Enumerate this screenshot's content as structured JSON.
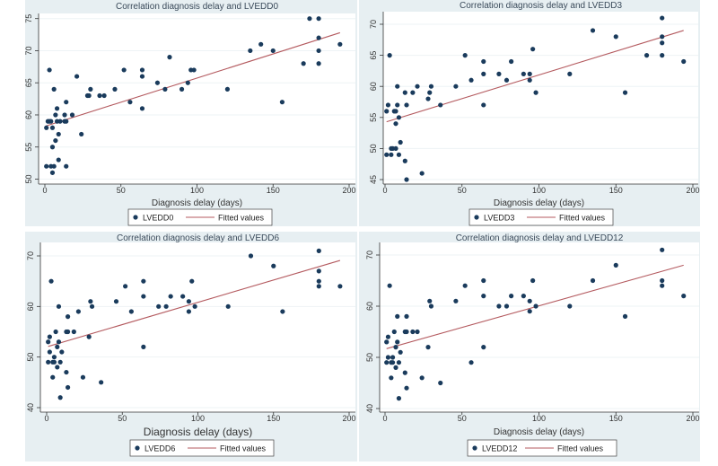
{
  "colors": {
    "marker": "#1a3b5c",
    "fit_line": "#b45a5f",
    "panel_bg": "#e7eff2",
    "plot_bg": "#ffffff",
    "grid": "#eef3f5"
  },
  "chart_data": [
    {
      "type": "scatter",
      "title": "Correlation diagnosis delay and LVEDD0",
      "xlabel": "Diagnosis delay (days)",
      "ylabel": "",
      "xlim": [
        0,
        200
      ],
      "ylim": [
        50,
        75
      ],
      "xticks": [
        0,
        50,
        100,
        150,
        200
      ],
      "yticks": [
        50,
        55,
        60,
        65,
        70,
        75
      ],
      "grid": true,
      "legend": {
        "placement": "bottom",
        "entries": [
          "LVEDD0",
          "Fitted values"
        ]
      },
      "series": [
        {
          "name": "LVEDD0",
          "points": [
            [
              1,
              58
            ],
            [
              1,
              52
            ],
            [
              2,
              59
            ],
            [
              3,
              67
            ],
            [
              3,
              59
            ],
            [
              4,
              59
            ],
            [
              4,
              52
            ],
            [
              5,
              58
            ],
            [
              5,
              55
            ],
            [
              5,
              51
            ],
            [
              6,
              64
            ],
            [
              6,
              52
            ],
            [
              7,
              60
            ],
            [
              7,
              56
            ],
            [
              8,
              61
            ],
            [
              8,
              59
            ],
            [
              9,
              57
            ],
            [
              9,
              53
            ],
            [
              10,
              59
            ],
            [
              13,
              60
            ],
            [
              13,
              59
            ],
            [
              14,
              62
            ],
            [
              14,
              59
            ],
            [
              14,
              52
            ],
            [
              18,
              60
            ],
            [
              21,
              66
            ],
            [
              24,
              57
            ],
            [
              28,
              63
            ],
            [
              29,
              63
            ],
            [
              30,
              64
            ],
            [
              36,
              63
            ],
            [
              39,
              63
            ],
            [
              46,
              64
            ],
            [
              52,
              67
            ],
            [
              56,
              62
            ],
            [
              64,
              67
            ],
            [
              64,
              66
            ],
            [
              64,
              61
            ],
            [
              74,
              65
            ],
            [
              79,
              64
            ],
            [
              82,
              69
            ],
            [
              90,
              64
            ],
            [
              94,
              65
            ],
            [
              96,
              67
            ],
            [
              98,
              67
            ],
            [
              120,
              64
            ],
            [
              135,
              70
            ],
            [
              142,
              71
            ],
            [
              150,
              70
            ],
            [
              156,
              62
            ],
            [
              170,
              68
            ],
            [
              174,
              75
            ],
            [
              180,
              75
            ],
            [
              180,
              72
            ],
            [
              180,
              70
            ],
            [
              180,
              68
            ],
            [
              194,
              71
            ]
          ]
        },
        {
          "name": "Fitted values",
          "line": [
            [
              1,
              58.3
            ],
            [
              194,
              72.8
            ]
          ]
        }
      ]
    },
    {
      "type": "scatter",
      "title": "Correlation diagnosis delay and LVEDD3",
      "xlabel": "Diagnosis delay (days)",
      "ylabel": "",
      "xlim": [
        0,
        200
      ],
      "ylim": [
        45,
        70
      ],
      "xticks": [
        0,
        50,
        100,
        150,
        200
      ],
      "yticks": [
        45,
        50,
        55,
        60,
        65,
        70
      ],
      "grid": true,
      "legend": {
        "placement": "bottom",
        "entries": [
          "LVEDD3",
          "Fitted values"
        ]
      },
      "series": [
        {
          "name": "LVEDD3",
          "points": [
            [
              1,
              56
            ],
            [
              1,
              49
            ],
            [
              2,
              57
            ],
            [
              3,
              65
            ],
            [
              4,
              50
            ],
            [
              4,
              49
            ],
            [
              5,
              50
            ],
            [
              6,
              56
            ],
            [
              7,
              56
            ],
            [
              7,
              54
            ],
            [
              7,
              50
            ],
            [
              8,
              60
            ],
            [
              8,
              57
            ],
            [
              9,
              55
            ],
            [
              9,
              49
            ],
            [
              10,
              51
            ],
            [
              13,
              59
            ],
            [
              13,
              48
            ],
            [
              14,
              57
            ],
            [
              14,
              45
            ],
            [
              18,
              59
            ],
            [
              21,
              60
            ],
            [
              24,
              46
            ],
            [
              28,
              58
            ],
            [
              29,
              59
            ],
            [
              30,
              60
            ],
            [
              36,
              57
            ],
            [
              46,
              60
            ],
            [
              52,
              65
            ],
            [
              56,
              61
            ],
            [
              64,
              64
            ],
            [
              64,
              62
            ],
            [
              64,
              57
            ],
            [
              74,
              62
            ],
            [
              79,
              61
            ],
            [
              82,
              64
            ],
            [
              90,
              62
            ],
            [
              94,
              62
            ],
            [
              94,
              61
            ],
            [
              96,
              66
            ],
            [
              98,
              59
            ],
            [
              120,
              62
            ],
            [
              135,
              69
            ],
            [
              150,
              68
            ],
            [
              156,
              59
            ],
            [
              170,
              65
            ],
            [
              180,
              71
            ],
            [
              180,
              68
            ],
            [
              180,
              67
            ],
            [
              180,
              65
            ],
            [
              194,
              64
            ]
          ]
        },
        {
          "name": "Fitted values",
          "line": [
            [
              1,
              54.3
            ],
            [
              194,
              69
            ]
          ]
        }
      ]
    },
    {
      "type": "scatter",
      "title": "Correlation diagnosis delay and LVEDD6",
      "xlabel": "Diagnosis delay (days)",
      "ylabel": "",
      "xlim": [
        0,
        200
      ],
      "ylim": [
        40,
        70
      ],
      "xticks": [
        0,
        50,
        100,
        150,
        200
      ],
      "yticks": [
        40,
        50,
        60,
        70
      ],
      "grid": true,
      "legend": {
        "placement": "bottom",
        "entries": [
          "LVEDD6",
          "Fitted values"
        ]
      },
      "series": [
        {
          "name": "LVEDD6",
          "points": [
            [
              1,
              53
            ],
            [
              1,
              49
            ],
            [
              2,
              54
            ],
            [
              2,
              51
            ],
            [
              3,
              65
            ],
            [
              4,
              49
            ],
            [
              4,
              46
            ],
            [
              5,
              50
            ],
            [
              5,
              49
            ],
            [
              6,
              55
            ],
            [
              7,
              52
            ],
            [
              7,
              48
            ],
            [
              8,
              60
            ],
            [
              8,
              53
            ],
            [
              9,
              49
            ],
            [
              9,
              42
            ],
            [
              10,
              51
            ],
            [
              13,
              55
            ],
            [
              13,
              47
            ],
            [
              14,
              58
            ],
            [
              14,
              55
            ],
            [
              14,
              44
            ],
            [
              18,
              55
            ],
            [
              21,
              59
            ],
            [
              24,
              46
            ],
            [
              28,
              54
            ],
            [
              29,
              61
            ],
            [
              30,
              60
            ],
            [
              36,
              45
            ],
            [
              46,
              61
            ],
            [
              52,
              64
            ],
            [
              56,
              59
            ],
            [
              64,
              65
            ],
            [
              64,
              62
            ],
            [
              64,
              52
            ],
            [
              74,
              60
            ],
            [
              79,
              60
            ],
            [
              82,
              62
            ],
            [
              90,
              62
            ],
            [
              94,
              61
            ],
            [
              94,
              59
            ],
            [
              96,
              65
            ],
            [
              98,
              60
            ],
            [
              120,
              60
            ],
            [
              135,
              70
            ],
            [
              150,
              68
            ],
            [
              156,
              59
            ],
            [
              180,
              71
            ],
            [
              180,
              67
            ],
            [
              180,
              65
            ],
            [
              180,
              64
            ],
            [
              194,
              64
            ]
          ]
        },
        {
          "name": "Fitted values",
          "line": [
            [
              1,
              52.1
            ],
            [
              194,
              69.1
            ]
          ]
        }
      ]
    },
    {
      "type": "scatter",
      "title": "Correlation diagnosis delay and LVEDD12",
      "xlabel": "Diagnosis delay (days)",
      "ylabel": "",
      "xlim": [
        0,
        200
      ],
      "ylim": [
        40,
        70
      ],
      "xticks": [
        0,
        50,
        100,
        150,
        200
      ],
      "yticks": [
        40,
        50,
        60,
        70
      ],
      "grid": true,
      "legend": {
        "placement": "bottom",
        "entries": [
          "LVEDD12",
          "Fitted values"
        ]
      },
      "series": [
        {
          "name": "LVEDD12",
          "points": [
            [
              1,
              53
            ],
            [
              1,
              49
            ],
            [
              2,
              54
            ],
            [
              2,
              50
            ],
            [
              3,
              64
            ],
            [
              4,
              49
            ],
            [
              4,
              46
            ],
            [
              5,
              50
            ],
            [
              5,
              49
            ],
            [
              6,
              55
            ],
            [
              7,
              52
            ],
            [
              7,
              48
            ],
            [
              8,
              58
            ],
            [
              8,
              53
            ],
            [
              9,
              49
            ],
            [
              9,
              42
            ],
            [
              10,
              51
            ],
            [
              13,
              55
            ],
            [
              13,
              47
            ],
            [
              14,
              58
            ],
            [
              14,
              55
            ],
            [
              14,
              44
            ],
            [
              18,
              55
            ],
            [
              21,
              55
            ],
            [
              24,
              46
            ],
            [
              28,
              52
            ],
            [
              29,
              61
            ],
            [
              30,
              60
            ],
            [
              36,
              45
            ],
            [
              46,
              61
            ],
            [
              52,
              64
            ],
            [
              56,
              49
            ],
            [
              64,
              65
            ],
            [
              64,
              62
            ],
            [
              64,
              52
            ],
            [
              74,
              60
            ],
            [
              79,
              60
            ],
            [
              82,
              62
            ],
            [
              90,
              62
            ],
            [
              94,
              61
            ],
            [
              94,
              59
            ],
            [
              96,
              65
            ],
            [
              98,
              60
            ],
            [
              120,
              60
            ],
            [
              135,
              65
            ],
            [
              150,
              68
            ],
            [
              156,
              58
            ],
            [
              180,
              71
            ],
            [
              180,
              65
            ],
            [
              180,
              64
            ],
            [
              194,
              62
            ]
          ]
        },
        {
          "name": "Fitted values",
          "line": [
            [
              1,
              51.7
            ],
            [
              194,
              68
            ]
          ]
        }
      ]
    }
  ]
}
